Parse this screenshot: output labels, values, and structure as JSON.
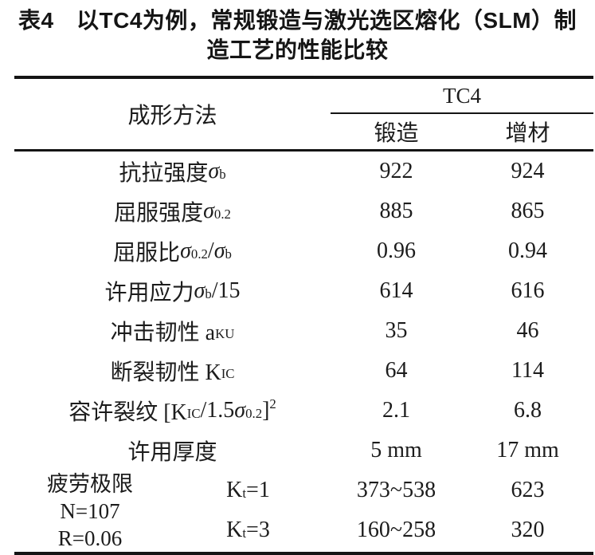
{
  "title": {
    "line1": "表4　以TC4为例，常规锻造与激光选区熔化（SLM）制",
    "line2": "造工艺的性能比较"
  },
  "table": {
    "header": {
      "method_label": "成形方法",
      "group_label": "TC4",
      "col_forged": "锻造",
      "col_additive": "增材"
    },
    "rows": [
      {
        "segs": [
          {
            "t": "t",
            "v": "抗拉强度 "
          },
          {
            "t": "i",
            "v": "σ"
          },
          {
            "t": "sub",
            "v": "b"
          }
        ],
        "forged": "922",
        "additive": "924"
      },
      {
        "segs": [
          {
            "t": "t",
            "v": "屈服强度 "
          },
          {
            "t": "i",
            "v": "σ"
          },
          {
            "t": "sub",
            "v": "0.2"
          }
        ],
        "forged": "885",
        "additive": "865"
      },
      {
        "segs": [
          {
            "t": "t",
            "v": "屈服比 "
          },
          {
            "t": "i",
            "v": "σ"
          },
          {
            "t": "sub",
            "v": "0.2"
          },
          {
            "t": "t",
            "v": "/"
          },
          {
            "t": "i",
            "v": "σ"
          },
          {
            "t": "sub",
            "v": "b"
          }
        ],
        "forged": "0.96",
        "additive": "0.94"
      },
      {
        "segs": [
          {
            "t": "t",
            "v": "许用应力 "
          },
          {
            "t": "i",
            "v": "σ"
          },
          {
            "t": "sub",
            "v": "b"
          },
          {
            "t": "t",
            "v": "/15"
          }
        ],
        "forged": "614",
        "additive": "616"
      },
      {
        "segs": [
          {
            "t": "t",
            "v": "冲击韧性 a"
          },
          {
            "t": "sub",
            "v": "KU"
          }
        ],
        "forged": "35",
        "additive": "46"
      },
      {
        "segs": [
          {
            "t": "t",
            "v": "断裂韧性 K"
          },
          {
            "t": "sub",
            "v": "IC"
          }
        ],
        "forged": "64",
        "additive": "114"
      },
      {
        "segs": [
          {
            "t": "t",
            "v": "容许裂纹 [K"
          },
          {
            "t": "sub",
            "v": "IC"
          },
          {
            "t": "t",
            "v": "/1.5"
          },
          {
            "t": "i",
            "v": "σ"
          },
          {
            "t": "sub",
            "v": "0.2"
          },
          {
            "t": "t",
            "v": "]"
          },
          {
            "t": "sup",
            "v": "2"
          }
        ],
        "forged": "2.1",
        "additive": "6.8"
      },
      {
        "segs": [
          {
            "t": "t",
            "v": "许用厚度"
          }
        ],
        "forged": "5 mm",
        "additive": "17 mm"
      }
    ],
    "fatigue": {
      "label_lines": [
        "疲劳极限",
        "N=107",
        "R=0.06"
      ],
      "subrows": [
        {
          "segs": [
            {
              "t": "t",
              "v": "K"
            },
            {
              "t": "sub",
              "v": "t"
            },
            {
              "t": "t",
              "v": "=1"
            }
          ],
          "forged": "373~538",
          "additive": "623"
        },
        {
          "segs": [
            {
              "t": "t",
              "v": "K"
            },
            {
              "t": "sub",
              "v": "t"
            },
            {
              "t": "t",
              "v": "=3"
            }
          ],
          "forged": "160~258",
          "additive": "320"
        }
      ]
    }
  }
}
